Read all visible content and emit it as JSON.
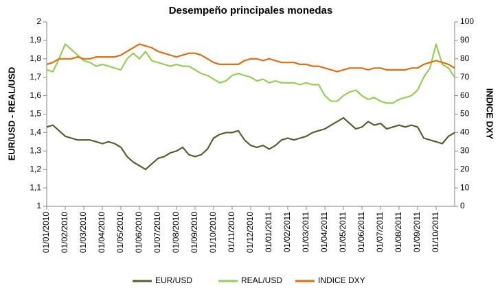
{
  "chart_data": {
    "type": "line",
    "title": "Desempeño principales monedas",
    "y_label": "EUR/USD - REAL/USD",
    "y2_label": "INDICE DXY",
    "categories": [
      "01/01/2010",
      null,
      null,
      "01/02/2010",
      null,
      null,
      "01/03/2010",
      null,
      null,
      "01/04/2010",
      null,
      null,
      "01/05/2010",
      null,
      null,
      "01/06/2010",
      null,
      null,
      "01/07/2010",
      null,
      null,
      "01/08/2010",
      null,
      null,
      "01/09/2010",
      null,
      null,
      "01/10/2010",
      null,
      null,
      "01/11/2010",
      null,
      null,
      "01/12/2010",
      null,
      null,
      "01/01/2011",
      null,
      null,
      "01/02/2011",
      null,
      null,
      "01/03/2011",
      null,
      null,
      "01/04/2011",
      null,
      null,
      "01/05/2011",
      null,
      null,
      "01/06/2011",
      null,
      null,
      "01/07/2011",
      null,
      null,
      "01/08/2011",
      null,
      null,
      "01/09/2011",
      null,
      null,
      "01/10/2011",
      null,
      null,
      null
    ],
    "series": [
      {
        "name": "EUR/USD",
        "color": "#4f6228",
        "values": [
          1.43,
          1.44,
          1.41,
          1.38,
          1.37,
          1.36,
          1.36,
          1.36,
          1.35,
          1.34,
          1.35,
          1.34,
          1.32,
          1.27,
          1.24,
          1.22,
          1.2,
          1.23,
          1.26,
          1.27,
          1.29,
          1.3,
          1.32,
          1.28,
          1.27,
          1.28,
          1.31,
          1.37,
          1.39,
          1.4,
          1.4,
          1.41,
          1.36,
          1.33,
          1.32,
          1.33,
          1.31,
          1.33,
          1.36,
          1.37,
          1.36,
          1.37,
          1.38,
          1.4,
          1.41,
          1.42,
          1.44,
          1.46,
          1.48,
          1.45,
          1.42,
          1.43,
          1.46,
          1.44,
          1.45,
          1.42,
          1.43,
          1.44,
          1.43,
          1.44,
          1.43,
          1.37,
          1.36,
          1.35,
          1.34,
          1.38,
          1.4
        ]
      },
      {
        "name": "REAL/USD",
        "color": "#92d050",
        "values": [
          1.74,
          1.73,
          1.8,
          1.88,
          1.85,
          1.82,
          1.79,
          1.78,
          1.76,
          1.77,
          1.76,
          1.75,
          1.74,
          1.8,
          1.83,
          1.8,
          1.84,
          1.79,
          1.78,
          1.77,
          1.76,
          1.77,
          1.76,
          1.76,
          1.74,
          1.72,
          1.71,
          1.69,
          1.67,
          1.68,
          1.71,
          1.72,
          1.71,
          1.7,
          1.68,
          1.69,
          1.67,
          1.68,
          1.67,
          1.67,
          1.67,
          1.66,
          1.67,
          1.66,
          1.66,
          1.6,
          1.57,
          1.57,
          1.6,
          1.62,
          1.63,
          1.6,
          1.58,
          1.59,
          1.57,
          1.56,
          1.56,
          1.58,
          1.59,
          1.6,
          1.63,
          1.7,
          1.75,
          1.88,
          1.77,
          1.75,
          1.7
        ]
      },
      {
        "name": "INDICE DXY",
        "color": "#e46c0a",
        "axis": "y2",
        "values": [
          77,
          78,
          80,
          80,
          80,
          81,
          80,
          80,
          81,
          81,
          81,
          81,
          82,
          84,
          86,
          88,
          87,
          86,
          84,
          83,
          82,
          81,
          82,
          83,
          83,
          82,
          80,
          78,
          77,
          77,
          77,
          77,
          79,
          80,
          80,
          79,
          80,
          79,
          78,
          78,
          78,
          77,
          77,
          76,
          76,
          75,
          74,
          73,
          74,
          75,
          75,
          75,
          74,
          75,
          75,
          74,
          74,
          74,
          74,
          75,
          75,
          77,
          78,
          79,
          78,
          77,
          75
        ]
      }
    ],
    "ylim": [
      1,
      2
    ],
    "yticks": [
      1,
      {
        "value": 1.1,
        "label": "1,1"
      },
      {
        "value": 1.2,
        "label": "1,2"
      },
      {
        "value": 1.3,
        "label": "1,3"
      },
      {
        "value": 1.4,
        "label": "1,4"
      },
      {
        "value": 1.5,
        "label": "1,5"
      },
      {
        "value": 1.6,
        "label": "1,6"
      },
      {
        "value": 1.7,
        "label": "1,7"
      },
      {
        "value": 1.8,
        "label": "1,8"
      },
      {
        "value": 1.9,
        "label": "1,9"
      },
      2
    ],
    "y2lim": [
      0,
      100
    ],
    "y2ticks": [
      0,
      10,
      20,
      30,
      40,
      50,
      60,
      70,
      80,
      90,
      100
    ],
    "legend": "bottom"
  }
}
